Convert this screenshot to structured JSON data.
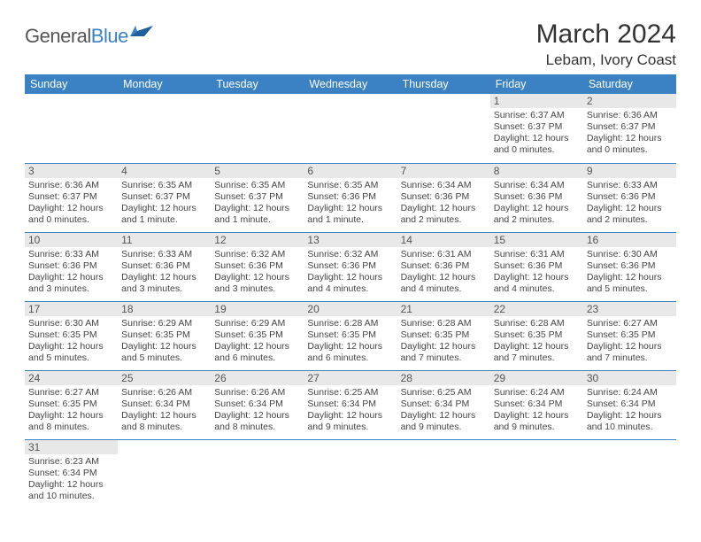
{
  "logo": {
    "part1": "General",
    "part2": "Blue"
  },
  "title": "March 2024",
  "location": "Lebam, Ivory Coast",
  "colors": {
    "header_bg": "#3b82c4",
    "header_text": "#ffffff",
    "daynum_bg": "#e8e8e8",
    "row_border": "#3b82c4",
    "body_text": "#444444"
  },
  "weekdays": [
    "Sunday",
    "Monday",
    "Tuesday",
    "Wednesday",
    "Thursday",
    "Friday",
    "Saturday"
  ],
  "weeks": [
    [
      {
        "n": "",
        "sr": "",
        "ss": "",
        "dl": ""
      },
      {
        "n": "",
        "sr": "",
        "ss": "",
        "dl": ""
      },
      {
        "n": "",
        "sr": "",
        "ss": "",
        "dl": ""
      },
      {
        "n": "",
        "sr": "",
        "ss": "",
        "dl": ""
      },
      {
        "n": "",
        "sr": "",
        "ss": "",
        "dl": ""
      },
      {
        "n": "1",
        "sr": "Sunrise: 6:37 AM",
        "ss": "Sunset: 6:37 PM",
        "dl": "Daylight: 12 hours and 0 minutes."
      },
      {
        "n": "2",
        "sr": "Sunrise: 6:36 AM",
        "ss": "Sunset: 6:37 PM",
        "dl": "Daylight: 12 hours and 0 minutes."
      }
    ],
    [
      {
        "n": "3",
        "sr": "Sunrise: 6:36 AM",
        "ss": "Sunset: 6:37 PM",
        "dl": "Daylight: 12 hours and 0 minutes."
      },
      {
        "n": "4",
        "sr": "Sunrise: 6:35 AM",
        "ss": "Sunset: 6:37 PM",
        "dl": "Daylight: 12 hours and 1 minute."
      },
      {
        "n": "5",
        "sr": "Sunrise: 6:35 AM",
        "ss": "Sunset: 6:37 PM",
        "dl": "Daylight: 12 hours and 1 minute."
      },
      {
        "n": "6",
        "sr": "Sunrise: 6:35 AM",
        "ss": "Sunset: 6:36 PM",
        "dl": "Daylight: 12 hours and 1 minute."
      },
      {
        "n": "7",
        "sr": "Sunrise: 6:34 AM",
        "ss": "Sunset: 6:36 PM",
        "dl": "Daylight: 12 hours and 2 minutes."
      },
      {
        "n": "8",
        "sr": "Sunrise: 6:34 AM",
        "ss": "Sunset: 6:36 PM",
        "dl": "Daylight: 12 hours and 2 minutes."
      },
      {
        "n": "9",
        "sr": "Sunrise: 6:33 AM",
        "ss": "Sunset: 6:36 PM",
        "dl": "Daylight: 12 hours and 2 minutes."
      }
    ],
    [
      {
        "n": "10",
        "sr": "Sunrise: 6:33 AM",
        "ss": "Sunset: 6:36 PM",
        "dl": "Daylight: 12 hours and 3 minutes."
      },
      {
        "n": "11",
        "sr": "Sunrise: 6:33 AM",
        "ss": "Sunset: 6:36 PM",
        "dl": "Daylight: 12 hours and 3 minutes."
      },
      {
        "n": "12",
        "sr": "Sunrise: 6:32 AM",
        "ss": "Sunset: 6:36 PM",
        "dl": "Daylight: 12 hours and 3 minutes."
      },
      {
        "n": "13",
        "sr": "Sunrise: 6:32 AM",
        "ss": "Sunset: 6:36 PM",
        "dl": "Daylight: 12 hours and 4 minutes."
      },
      {
        "n": "14",
        "sr": "Sunrise: 6:31 AM",
        "ss": "Sunset: 6:36 PM",
        "dl": "Daylight: 12 hours and 4 minutes."
      },
      {
        "n": "15",
        "sr": "Sunrise: 6:31 AM",
        "ss": "Sunset: 6:36 PM",
        "dl": "Daylight: 12 hours and 4 minutes."
      },
      {
        "n": "16",
        "sr": "Sunrise: 6:30 AM",
        "ss": "Sunset: 6:36 PM",
        "dl": "Daylight: 12 hours and 5 minutes."
      }
    ],
    [
      {
        "n": "17",
        "sr": "Sunrise: 6:30 AM",
        "ss": "Sunset: 6:35 PM",
        "dl": "Daylight: 12 hours and 5 minutes."
      },
      {
        "n": "18",
        "sr": "Sunrise: 6:29 AM",
        "ss": "Sunset: 6:35 PM",
        "dl": "Daylight: 12 hours and 5 minutes."
      },
      {
        "n": "19",
        "sr": "Sunrise: 6:29 AM",
        "ss": "Sunset: 6:35 PM",
        "dl": "Daylight: 12 hours and 6 minutes."
      },
      {
        "n": "20",
        "sr": "Sunrise: 6:28 AM",
        "ss": "Sunset: 6:35 PM",
        "dl": "Daylight: 12 hours and 6 minutes."
      },
      {
        "n": "21",
        "sr": "Sunrise: 6:28 AM",
        "ss": "Sunset: 6:35 PM",
        "dl": "Daylight: 12 hours and 7 minutes."
      },
      {
        "n": "22",
        "sr": "Sunrise: 6:28 AM",
        "ss": "Sunset: 6:35 PM",
        "dl": "Daylight: 12 hours and 7 minutes."
      },
      {
        "n": "23",
        "sr": "Sunrise: 6:27 AM",
        "ss": "Sunset: 6:35 PM",
        "dl": "Daylight: 12 hours and 7 minutes."
      }
    ],
    [
      {
        "n": "24",
        "sr": "Sunrise: 6:27 AM",
        "ss": "Sunset: 6:35 PM",
        "dl": "Daylight: 12 hours and 8 minutes."
      },
      {
        "n": "25",
        "sr": "Sunrise: 6:26 AM",
        "ss": "Sunset: 6:34 PM",
        "dl": "Daylight: 12 hours and 8 minutes."
      },
      {
        "n": "26",
        "sr": "Sunrise: 6:26 AM",
        "ss": "Sunset: 6:34 PM",
        "dl": "Daylight: 12 hours and 8 minutes."
      },
      {
        "n": "27",
        "sr": "Sunrise: 6:25 AM",
        "ss": "Sunset: 6:34 PM",
        "dl": "Daylight: 12 hours and 9 minutes."
      },
      {
        "n": "28",
        "sr": "Sunrise: 6:25 AM",
        "ss": "Sunset: 6:34 PM",
        "dl": "Daylight: 12 hours and 9 minutes."
      },
      {
        "n": "29",
        "sr": "Sunrise: 6:24 AM",
        "ss": "Sunset: 6:34 PM",
        "dl": "Daylight: 12 hours and 9 minutes."
      },
      {
        "n": "30",
        "sr": "Sunrise: 6:24 AM",
        "ss": "Sunset: 6:34 PM",
        "dl": "Daylight: 12 hours and 10 minutes."
      }
    ],
    [
      {
        "n": "31",
        "sr": "Sunrise: 6:23 AM",
        "ss": "Sunset: 6:34 PM",
        "dl": "Daylight: 12 hours and 10 minutes."
      },
      {
        "n": "",
        "sr": "",
        "ss": "",
        "dl": ""
      },
      {
        "n": "",
        "sr": "",
        "ss": "",
        "dl": ""
      },
      {
        "n": "",
        "sr": "",
        "ss": "",
        "dl": ""
      },
      {
        "n": "",
        "sr": "",
        "ss": "",
        "dl": ""
      },
      {
        "n": "",
        "sr": "",
        "ss": "",
        "dl": ""
      },
      {
        "n": "",
        "sr": "",
        "ss": "",
        "dl": ""
      }
    ]
  ]
}
